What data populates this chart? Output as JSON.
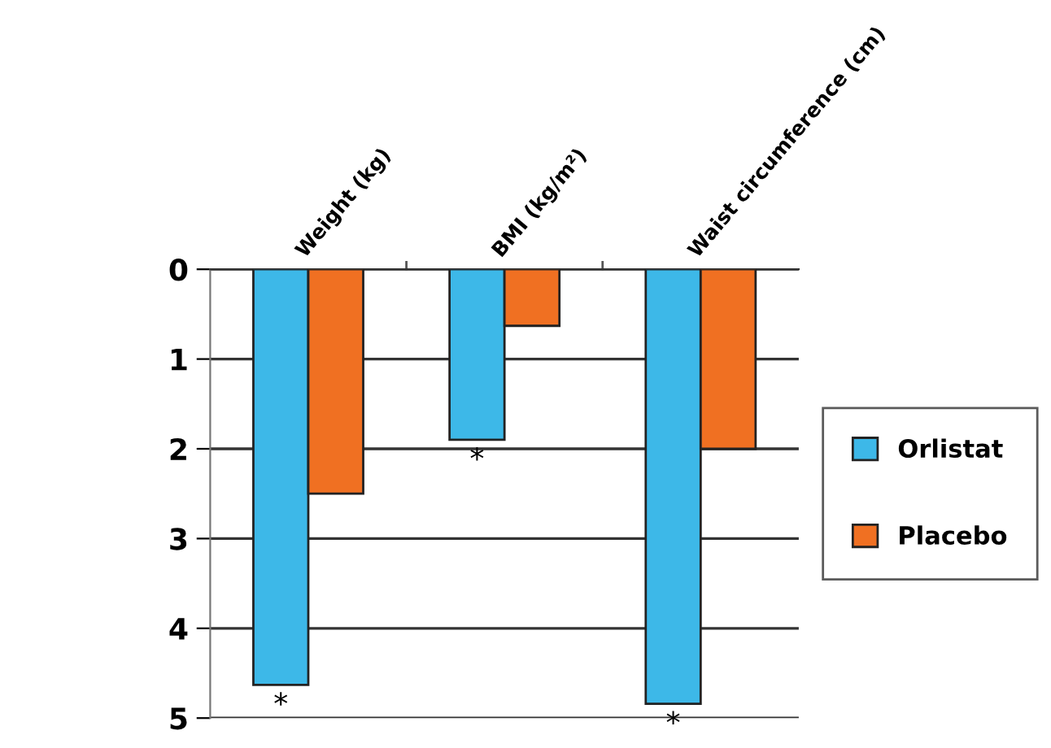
{
  "chart_data": {
    "type": "bar",
    "categories": [
      "Weight (kg)",
      "BMI (kg/m²)",
      "Waist circumference (cm)"
    ],
    "series": [
      {
        "name": "Orlistat",
        "color": "#3db8e8",
        "values": [
          4.63,
          1.9,
          4.84
        ]
      },
      {
        "name": "Placebo",
        "color": "#f07022",
        "values": [
          2.5,
          0.63,
          2.0
        ]
      }
    ],
    "ylim": [
      5,
      0
    ],
    "yticks": [
      0,
      1,
      2,
      3,
      4,
      5
    ],
    "grid": "y",
    "legend": "right",
    "annotations": [
      "*",
      "*",
      "*"
    ]
  }
}
